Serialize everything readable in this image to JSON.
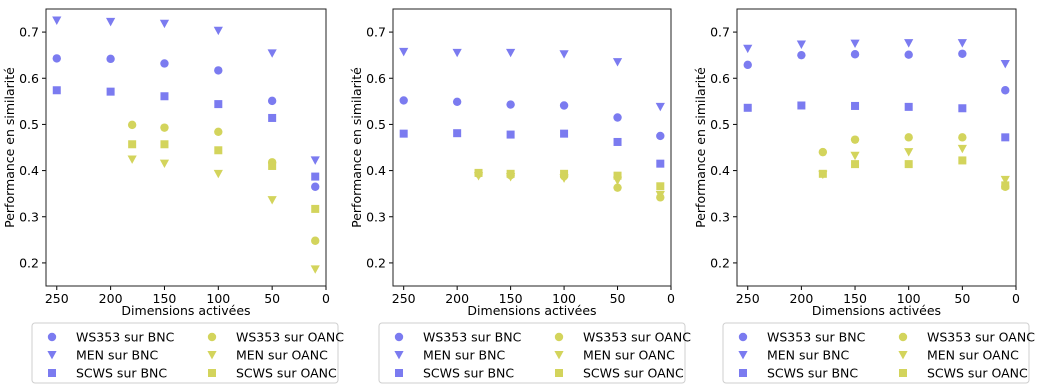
{
  "colors": {
    "bnc": "#7b7bf0",
    "oanc": "#d3d45c"
  },
  "legend": {
    "entries": [
      {
        "label": "WS353 sur BNC",
        "dataset": "WS353",
        "corpus": "BNC",
        "marker": "circle"
      },
      {
        "label": "MEN sur BNC",
        "dataset": "MEN",
        "corpus": "BNC",
        "marker": "triangle-down"
      },
      {
        "label": "SCWS sur BNC",
        "dataset": "SCWS",
        "corpus": "BNC",
        "marker": "square"
      },
      {
        "label": "WS353 sur OANC",
        "dataset": "WS353",
        "corpus": "OANC",
        "marker": "circle"
      },
      {
        "label": "MEN sur OANC",
        "dataset": "MEN",
        "corpus": "OANC",
        "marker": "triangle-down"
      },
      {
        "label": "SCWS sur OANC",
        "dataset": "SCWS",
        "corpus": "OANC",
        "marker": "square"
      }
    ]
  },
  "chart_data": [
    {
      "type": "scatter",
      "xlabel": "Dimensions activées",
      "ylabel": "Performance en similarité",
      "xlim": [
        260,
        0
      ],
      "ylim": [
        0.15,
        0.75
      ],
      "xticks": [
        250,
        200,
        150,
        100,
        50,
        0
      ],
      "yticks": [
        0.2,
        0.3,
        0.4,
        0.5,
        0.6,
        0.7
      ],
      "legend_position": "below",
      "series": [
        {
          "name": "WS353 sur BNC",
          "x": [
            250,
            200,
            150,
            100,
            50,
            10
          ],
          "y": [
            0.643,
            0.642,
            0.632,
            0.617,
            0.551,
            0.365
          ]
        },
        {
          "name": "MEN sur BNC",
          "x": [
            250,
            200,
            150,
            100,
            50,
            10
          ],
          "y": [
            0.725,
            0.722,
            0.718,
            0.703,
            0.654,
            0.422
          ]
        },
        {
          "name": "SCWS sur BNC",
          "x": [
            250,
            200,
            150,
            100,
            50,
            10
          ],
          "y": [
            0.574,
            0.571,
            0.561,
            0.544,
            0.514,
            0.387
          ]
        },
        {
          "name": "WS353 sur OANC",
          "x": [
            180,
            150,
            100,
            50,
            10
          ],
          "y": [
            0.499,
            0.493,
            0.484,
            0.418,
            0.248
          ]
        },
        {
          "name": "MEN sur OANC",
          "x": [
            180,
            150,
            100,
            50,
            10
          ],
          "y": [
            0.424,
            0.415,
            0.393,
            0.336,
            0.186
          ]
        },
        {
          "name": "SCWS sur OANC",
          "x": [
            180,
            150,
            100,
            50,
            10
          ],
          "y": [
            0.457,
            0.457,
            0.444,
            0.41,
            0.317
          ]
        }
      ]
    },
    {
      "type": "scatter",
      "xlabel": "Dimensions activées",
      "ylabel": "Performance en similarité",
      "xlim": [
        260,
        0
      ],
      "ylim": [
        0.15,
        0.75
      ],
      "xticks": [
        250,
        200,
        150,
        100,
        50,
        0
      ],
      "yticks": [
        0.2,
        0.3,
        0.4,
        0.5,
        0.6,
        0.7
      ],
      "legend_position": "below",
      "series": [
        {
          "name": "WS353 sur BNC",
          "x": [
            250,
            200,
            150,
            100,
            50,
            10
          ],
          "y": [
            0.552,
            0.549,
            0.543,
            0.541,
            0.515,
            0.475
          ]
        },
        {
          "name": "MEN sur BNC",
          "x": [
            250,
            200,
            150,
            100,
            50,
            10
          ],
          "y": [
            0.657,
            0.655,
            0.655,
            0.652,
            0.635,
            0.538
          ]
        },
        {
          "name": "SCWS sur BNC",
          "x": [
            250,
            200,
            150,
            100,
            50,
            10
          ],
          "y": [
            0.48,
            0.481,
            0.478,
            0.48,
            0.462,
            0.415
          ]
        },
        {
          "name": "WS353 sur OANC",
          "x": [
            180,
            150,
            100,
            50,
            10
          ],
          "y": [
            0.393,
            0.39,
            0.388,
            0.363,
            0.342
          ]
        },
        {
          "name": "MEN sur OANC",
          "x": [
            180,
            150,
            100,
            50,
            10
          ],
          "y": [
            0.388,
            0.386,
            0.383,
            0.378,
            0.347
          ]
        },
        {
          "name": "SCWS sur OANC",
          "x": [
            180,
            150,
            100,
            50,
            10
          ],
          "y": [
            0.395,
            0.393,
            0.393,
            0.389,
            0.366
          ]
        }
      ]
    },
    {
      "type": "scatter",
      "xlabel": "Dimensions activées",
      "ylabel": "Performance en similarité",
      "xlim": [
        260,
        0
      ],
      "ylim": [
        0.15,
        0.75
      ],
      "xticks": [
        250,
        200,
        150,
        100,
        50,
        0
      ],
      "yticks": [
        0.2,
        0.3,
        0.4,
        0.5,
        0.6,
        0.7
      ],
      "legend_position": "below",
      "series": [
        {
          "name": "WS353 sur BNC",
          "x": [
            250,
            200,
            150,
            100,
            50,
            10
          ],
          "y": [
            0.629,
            0.65,
            0.652,
            0.651,
            0.653,
            0.574
          ]
        },
        {
          "name": "MEN sur BNC",
          "x": [
            250,
            200,
            150,
            100,
            50,
            10
          ],
          "y": [
            0.664,
            0.673,
            0.675,
            0.676,
            0.676,
            0.631
          ]
        },
        {
          "name": "SCWS sur BNC",
          "x": [
            250,
            200,
            150,
            100,
            50,
            10
          ],
          "y": [
            0.536,
            0.541,
            0.54,
            0.538,
            0.535,
            0.472
          ]
        },
        {
          "name": "WS353 sur OANC",
          "x": [
            180,
            150,
            100,
            50,
            10
          ],
          "y": [
            0.44,
            0.467,
            0.472,
            0.472,
            0.365
          ]
        },
        {
          "name": "MEN sur OANC",
          "x": [
            180,
            150,
            100,
            50,
            10
          ],
          "y": [
            0.391,
            0.432,
            0.44,
            0.447,
            0.38
          ]
        },
        {
          "name": "SCWS sur OANC",
          "x": [
            180,
            150,
            100,
            50,
            10
          ],
          "y": [
            0.393,
            0.414,
            0.414,
            0.422,
            0.368
          ]
        }
      ]
    }
  ]
}
